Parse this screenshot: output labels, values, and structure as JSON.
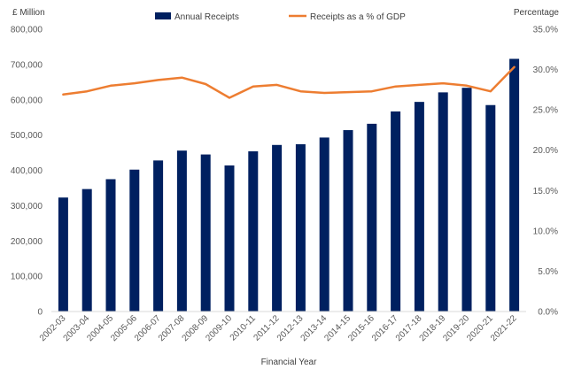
{
  "chart_data": {
    "type": "bar",
    "xlabel": "Financial Year",
    "ylabel_left": "£ Million",
    "ylabel_right": "Percentage",
    "ylim_left": [
      0,
      800000
    ],
    "ylim_right": [
      0,
      35
    ],
    "left_ticks": [
      "0",
      "100,000",
      "200,000",
      "300,000",
      "400,000",
      "500,000",
      "600,000",
      "700,000",
      "800,000"
    ],
    "right_ticks": [
      "0.0%",
      "5.0%",
      "10.0%",
      "15.0%",
      "20.0%",
      "25.0%",
      "30.0%",
      "35.0%"
    ],
    "grid": false,
    "legend_position": "top",
    "categories": [
      "2002-03",
      "2003-04",
      "2004-05",
      "2005-06",
      "2006-07",
      "2007-08",
      "2008-09",
      "2009-10",
      "2010-11",
      "2011-12",
      "2012-13",
      "2013-14",
      "2014-15",
      "2015-16",
      "2016-17",
      "2017-18",
      "2018-19",
      "2019-20",
      "2020-21",
      "2021-22"
    ],
    "series": [
      {
        "name": "Annual Receipts",
        "type": "bar",
        "axis": "left",
        "color": "#002060",
        "values": [
          323000,
          347000,
          375000,
          402000,
          428000,
          456000,
          445000,
          414000,
          454000,
          472000,
          474000,
          493000,
          514000,
          532000,
          567000,
          594000,
          621000,
          634000,
          585000,
          716000
        ]
      },
      {
        "name": "Receipts as a % of GDP",
        "type": "line",
        "axis": "right",
        "color": "#ED7D31",
        "values": [
          26.9,
          27.3,
          28.0,
          28.3,
          28.7,
          29.0,
          28.2,
          26.5,
          27.9,
          28.1,
          27.3,
          27.1,
          27.2,
          27.3,
          27.9,
          28.1,
          28.3,
          28.0,
          27.3,
          30.3
        ]
      }
    ]
  }
}
